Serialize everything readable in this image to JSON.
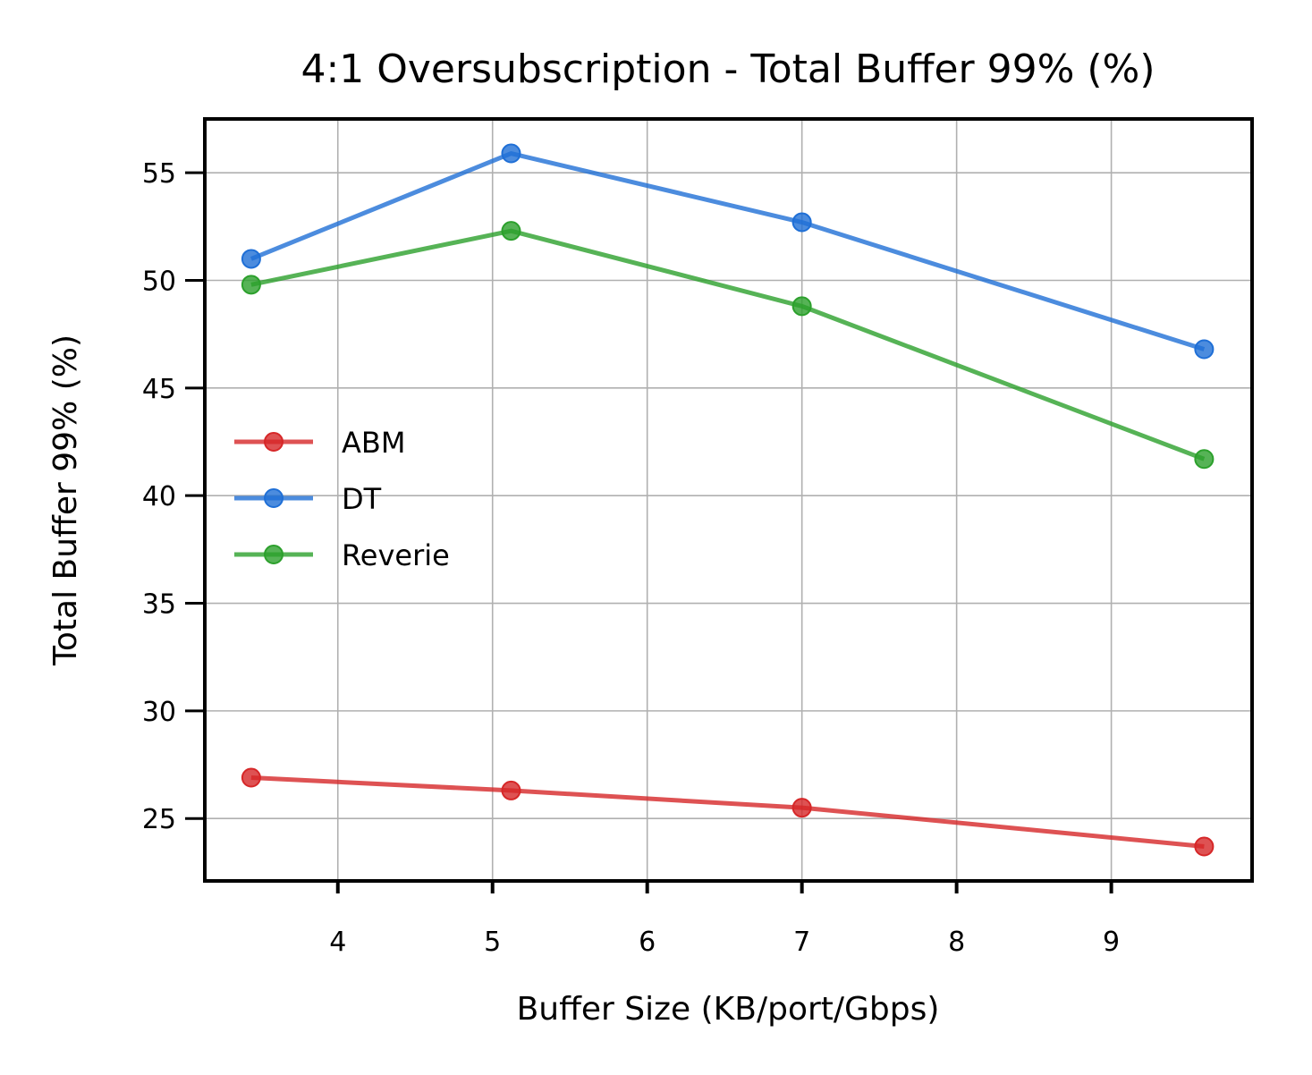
{
  "chart_data": {
    "type": "line",
    "title": "4:1 Oversubscription - Total Buffer 99% (%)",
    "xlabel": "Buffer Size (KB/port/Gbps)",
    "ylabel": "Total Buffer 99% (%)",
    "xlim": [
      3.14,
      9.91
    ],
    "ylim": [
      22.1,
      57.5
    ],
    "xticks": [
      4,
      5,
      6,
      7,
      8,
      9
    ],
    "yticks": [
      25,
      30,
      35,
      40,
      45,
      50,
      55
    ],
    "grid": true,
    "legend_position": "center-left",
    "x": [
      3.44,
      5.12,
      7.0,
      9.6
    ],
    "series": [
      {
        "name": "ABM",
        "color": "#d62728",
        "values": [
          26.9,
          26.3,
          25.5,
          23.7
        ]
      },
      {
        "name": "DT",
        "color": "#1f6fd6",
        "values": [
          51.0,
          55.9,
          52.7,
          46.8
        ]
      },
      {
        "name": "Reverie",
        "color": "#2ca02c",
        "values": [
          49.8,
          52.3,
          48.8,
          41.7
        ]
      }
    ]
  }
}
